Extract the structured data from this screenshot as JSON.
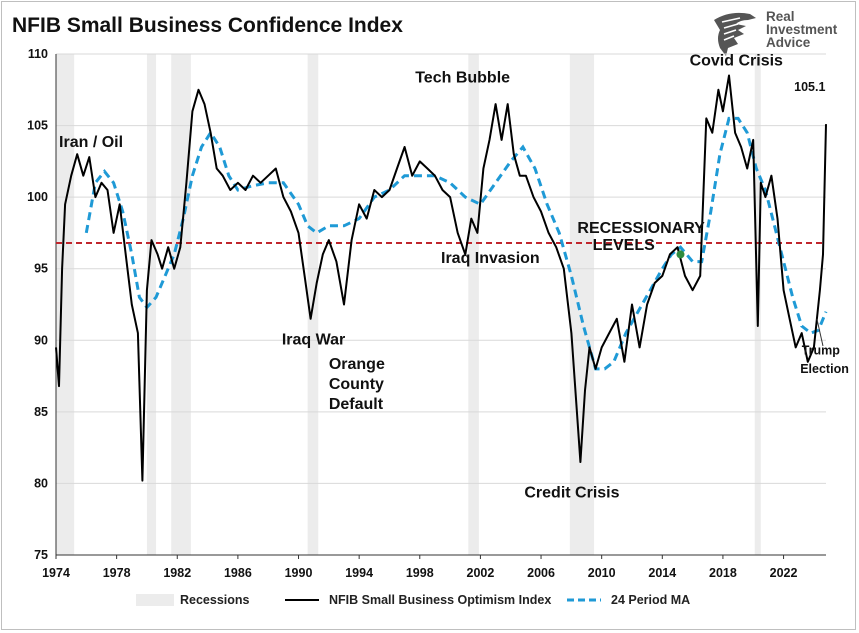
{
  "title": "NFIB Small Business Confidence Index",
  "logo": {
    "line1": "Real",
    "line2": "Investment",
    "line3": "Advice",
    "icon": "eagle-logo-icon"
  },
  "chart_data": {
    "type": "line",
    "title": "NFIB Small Business Confidence Index",
    "xlim": [
      1974,
      2024.8
    ],
    "ylim": [
      75,
      110
    ],
    "y_ticks": [
      75,
      80,
      85,
      90,
      95,
      100,
      105,
      110
    ],
    "x_tick_labels": [
      "1974",
      "1978",
      "1982",
      "1986",
      "1990",
      "1994",
      "1998",
      "2002",
      "2006",
      "2010",
      "2014",
      "2018",
      "2022"
    ],
    "grid": "horizontal",
    "legend_placement": "bottom",
    "recessions": [
      [
        1974.0,
        1975.2
      ],
      [
        1980.0,
        1980.6
      ],
      [
        1981.6,
        1982.9
      ],
      [
        1990.6,
        1991.3
      ],
      [
        2001.2,
        2001.9
      ],
      [
        2007.9,
        2009.5
      ],
      [
        2020.1,
        2020.5
      ]
    ],
    "recessionary_level": 96.8,
    "series": [
      {
        "name": "NFIB Small Business Optimism Index",
        "color": "#000000",
        "x": [
          1974.0,
          1974.2,
          1974.4,
          1974.6,
          1975.0,
          1975.4,
          1975.8,
          1976.2,
          1976.6,
          1977.0,
          1977.4,
          1977.8,
          1978.2,
          1978.6,
          1979.0,
          1979.4,
          1979.7,
          1980.0,
          1980.3,
          1980.7,
          1981.0,
          1981.4,
          1981.8,
          1982.2,
          1982.6,
          1983.0,
          1983.4,
          1983.8,
          1984.2,
          1984.6,
          1985.0,
          1985.5,
          1986.0,
          1986.5,
          1987.0,
          1987.5,
          1988.0,
          1988.5,
          1989.0,
          1989.5,
          1990.0,
          1990.4,
          1990.8,
          1991.2,
          1991.6,
          1992.0,
          1992.5,
          1993.0,
          1993.5,
          1994.0,
          1994.5,
          1995.0,
          1995.5,
          1996.0,
          1996.5,
          1997.0,
          1997.5,
          1998.0,
          1998.5,
          1999.0,
          1999.5,
          2000.0,
          2000.5,
          2001.0,
          2001.4,
          2001.8,
          2002.2,
          2002.6,
          2003.0,
          2003.4,
          2003.8,
          2004.2,
          2004.6,
          2005.0,
          2005.5,
          2006.0,
          2006.5,
          2007.0,
          2007.5,
          2008.0,
          2008.3,
          2008.6,
          2008.9,
          2009.2,
          2009.6,
          2010.0,
          2010.5,
          2011.0,
          2011.5,
          2012.0,
          2012.5,
          2013.0,
          2013.5,
          2014.0,
          2014.5,
          2015.0,
          2015.5,
          2016.0,
          2016.5,
          2016.9,
          2017.3,
          2017.7,
          2018.0,
          2018.4,
          2018.8,
          2019.2,
          2019.6,
          2020.0,
          2020.3,
          2020.5,
          2020.8,
          2021.2,
          2021.6,
          2022.0,
          2022.4,
          2022.8,
          2023.2,
          2023.6,
          2024.0,
          2024.2,
          2024.4,
          2024.6,
          2024.8
        ],
        "y": [
          89.5,
          86.8,
          95.0,
          99.5,
          101.5,
          103.0,
          101.5,
          102.8,
          100.0,
          101.0,
          100.5,
          97.5,
          99.5,
          96.0,
          92.5,
          90.5,
          80.2,
          93.5,
          97.0,
          96.0,
          95.0,
          96.5,
          95.0,
          96.5,
          101.0,
          106.0,
          107.5,
          106.5,
          104.5,
          102.0,
          101.5,
          100.5,
          101.0,
          100.5,
          101.5,
          101.0,
          101.5,
          102.0,
          100.0,
          99.0,
          97.5,
          94.5,
          91.5,
          94.0,
          96.0,
          97.0,
          95.5,
          92.5,
          97.0,
          99.5,
          98.5,
          100.5,
          100.0,
          100.5,
          102.0,
          103.5,
          101.5,
          102.5,
          102.0,
          101.5,
          100.5,
          100.0,
          97.5,
          96.0,
          98.5,
          97.5,
          102.0,
          104.0,
          106.5,
          104.0,
          106.5,
          103.0,
          101.5,
          101.5,
          100.0,
          99.0,
          97.5,
          96.5,
          95.0,
          90.5,
          86.0,
          81.5,
          86.5,
          89.5,
          88.0,
          89.5,
          90.5,
          91.5,
          88.5,
          92.5,
          89.5,
          92.5,
          94.0,
          94.5,
          96.0,
          96.5,
          94.5,
          93.5,
          94.5,
          105.5,
          104.5,
          107.5,
          106.0,
          108.5,
          104.5,
          103.5,
          102.0,
          104.0,
          91.0,
          101.0,
          100.0,
          101.5,
          98.5,
          93.5,
          91.5,
          89.5,
          90.5,
          88.5,
          89.5,
          91.5,
          93.5,
          96.0,
          105.1
        ]
      },
      {
        "name": "24 Period MA",
        "color": "#1f9ad6",
        "x": [
          1976.0,
          1976.6,
          1977.2,
          1977.8,
          1978.4,
          1979.0,
          1979.5,
          1980.0,
          1980.6,
          1981.2,
          1981.8,
          1982.4,
          1983.0,
          1983.6,
          1984.2,
          1984.8,
          1985.4,
          1986.0,
          1987.0,
          1988.0,
          1989.0,
          1990.0,
          1990.6,
          1991.2,
          1992.0,
          1993.0,
          1994.0,
          1995.0,
          1996.0,
          1997.0,
          1998.0,
          1999.0,
          2000.0,
          2001.0,
          2002.0,
          2003.0,
          2004.0,
          2004.8,
          2005.6,
          2006.4,
          2007.2,
          2008.0,
          2008.8,
          2009.6,
          2010.2,
          2010.8,
          2011.6,
          2012.4,
          2013.2,
          2014.0,
          2014.6,
          2015.2,
          2016.0,
          2016.6,
          2017.2,
          2017.8,
          2018.4,
          2019.0,
          2019.6,
          2020.2,
          2020.8,
          2021.4,
          2022.0,
          2022.6,
          2023.2,
          2023.8,
          2024.3,
          2024.8
        ],
        "y": [
          97.5,
          101.0,
          101.8,
          101.0,
          99.0,
          96.0,
          93.0,
          92.3,
          93.0,
          94.5,
          96.0,
          98.5,
          101.5,
          103.5,
          104.5,
          103.5,
          101.5,
          100.5,
          100.8,
          101.0,
          101.0,
          99.5,
          98.0,
          97.5,
          98.0,
          98.0,
          98.5,
          100.0,
          100.5,
          101.5,
          101.5,
          101.5,
          101.0,
          100.0,
          99.5,
          101.0,
          102.5,
          103.5,
          102.0,
          99.5,
          97.5,
          94.5,
          91.0,
          88.0,
          88.0,
          88.5,
          90.5,
          92.0,
          93.5,
          95.0,
          96.0,
          96.5,
          95.5,
          95.5,
          99.0,
          103.0,
          105.5,
          105.5,
          104.5,
          102.0,
          100.5,
          98.0,
          95.5,
          93.0,
          91.0,
          90.5,
          90.7,
          92.0
        ]
      }
    ],
    "annotations": [
      {
        "text": "Iran / Oil",
        "x": 1974.2,
        "y": 103.5
      },
      {
        "text": "Iraq War",
        "x": 1988.9,
        "y": 89.7
      },
      {
        "text": "Orange",
        "x": 1992.0,
        "y": 88.0
      },
      {
        "text": "County",
        "x": 1992.0,
        "y": 86.6
      },
      {
        "text": "Default",
        "x": 1992.0,
        "y": 85.2
      },
      {
        "text": "Tech Bubble",
        "x": 1997.7,
        "y": 108.0
      },
      {
        "text": "Iraq Invasion",
        "x": 1999.4,
        "y": 95.4
      },
      {
        "text": "Credit Crisis",
        "x": 2004.9,
        "y": 79.0
      },
      {
        "text": "Covid Crisis",
        "x": 2015.8,
        "y": 109.2
      },
      {
        "text": "RECESSIONARY",
        "x": 2008.4,
        "y": 97.5
      },
      {
        "text": "LEVELS",
        "x": 2009.4,
        "y": 96.3
      },
      {
        "text": "Trump",
        "x": 2023.2,
        "y": 89.0
      },
      {
        "text": "Election",
        "x": 2023.1,
        "y": 87.7
      },
      {
        "text": "105.1",
        "x": 2022.7,
        "y": 107.4,
        "color": "#e00000"
      }
    ],
    "legend": [
      {
        "label": "Recessions",
        "kind": "band",
        "color": "#ececec"
      },
      {
        "label": "NFIB Small Business Optimism Index",
        "kind": "line",
        "color": "#000000"
      },
      {
        "label": "24 Period MA",
        "kind": "dashed",
        "color": "#1f9ad6"
      }
    ]
  }
}
